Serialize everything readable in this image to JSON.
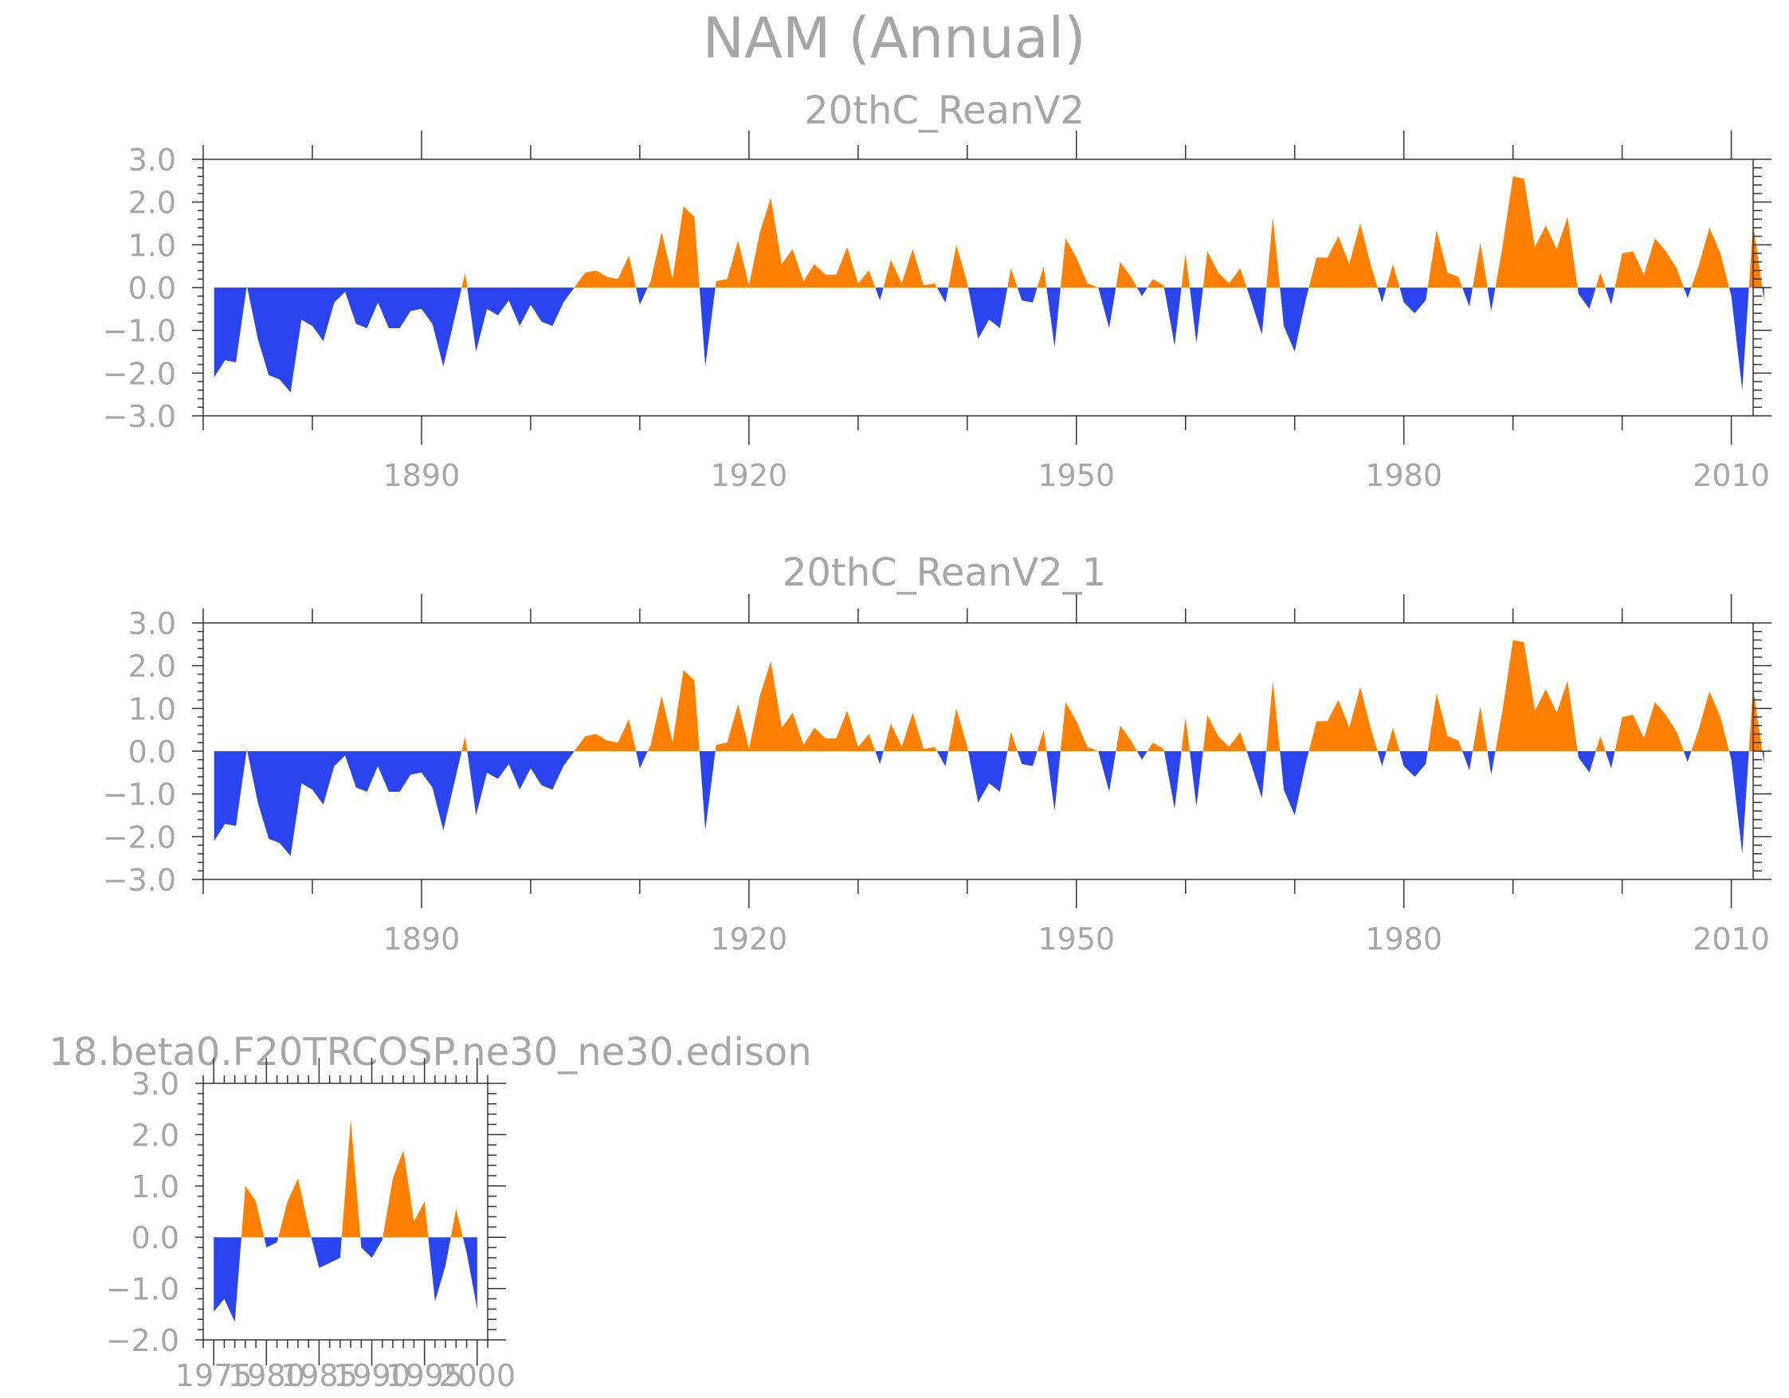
{
  "main_title": "NAM (Annual)",
  "colors": {
    "positive": "#ff8000",
    "negative": "#2a45f0",
    "text": "#a6a6a6",
    "axis": "#333333"
  },
  "chart_data": [
    {
      "type": "area",
      "title": "20thC_ReanV2",
      "xlabel": "",
      "ylabel": "",
      "xlim": [
        1870,
        2012
      ],
      "ylim": [
        -3.0,
        3.0
      ],
      "x_ticks": [
        1890,
        1920,
        1950,
        1980,
        2010
      ],
      "y_ticks": [
        "3.0",
        "2.0",
        "1.0",
        "0.0",
        "−1.0",
        "−2.0",
        "−3.0"
      ],
      "x_start": 1871,
      "values": [
        -2.1,
        -1.7,
        -1.75,
        0.05,
        -1.2,
        -2.05,
        -2.15,
        -2.45,
        -0.75,
        -0.9,
        -1.25,
        -0.35,
        -0.1,
        -0.85,
        -0.95,
        -0.35,
        -0.95,
        -0.95,
        -0.55,
        -0.5,
        -0.85,
        -1.85,
        -0.75,
        0.35,
        -1.5,
        -0.5,
        -0.65,
        -0.3,
        -0.9,
        -0.4,
        -0.8,
        -0.9,
        -0.35,
        0.0,
        0.35,
        0.4,
        0.25,
        0.2,
        0.75,
        -0.4,
        0.15,
        1.3,
        0.2,
        1.9,
        1.65,
        -1.85,
        0.15,
        0.2,
        1.1,
        0.05,
        1.3,
        2.1,
        0.55,
        0.9,
        0.15,
        0.55,
        0.3,
        0.3,
        0.95,
        0.1,
        0.4,
        -0.3,
        0.65,
        0.1,
        0.9,
        0.05,
        0.1,
        -0.35,
        1.0,
        0.1,
        -1.2,
        -0.75,
        -0.95,
        0.45,
        -0.3,
        -0.35,
        0.5,
        -1.4,
        1.15,
        0.7,
        0.1,
        0.0,
        -0.95,
        0.6,
        0.25,
        -0.2,
        0.2,
        0.05,
        -1.35,
        0.8,
        -1.3,
        0.85,
        0.35,
        0.1,
        0.45,
        -0.3,
        -1.1,
        1.65,
        -0.9,
        -1.5,
        -0.3,
        0.7,
        0.7,
        1.2,
        0.55,
        1.5,
        0.5,
        -0.35,
        0.55,
        -0.35,
        -0.6,
        -0.3,
        1.35,
        0.35,
        0.25,
        -0.45,
        1.05,
        -0.55,
        0.9,
        2.6,
        2.55,
        0.95,
        1.45,
        0.9,
        1.65,
        -0.15,
        -0.5,
        0.35,
        -0.4,
        0.8,
        0.85,
        0.3,
        1.15,
        0.85,
        0.45,
        -0.25,
        0.5,
        1.4,
        0.8,
        -0.2,
        -2.4,
        1.5,
        -0.3
      ]
    },
    {
      "type": "area",
      "title": "20thC_ReanV2_1",
      "xlabel": "",
      "ylabel": "",
      "xlim": [
        1870,
        2012
      ],
      "ylim": [
        -3.0,
        3.0
      ],
      "x_ticks": [
        1890,
        1920,
        1950,
        1980,
        2010
      ],
      "y_ticks": [
        "3.0",
        "2.0",
        "1.0",
        "0.0",
        "−1.0",
        "−2.0",
        "−3.0"
      ],
      "x_start": 1871,
      "values": [
        -2.1,
        -1.7,
        -1.75,
        0.05,
        -1.2,
        -2.05,
        -2.15,
        -2.45,
        -0.75,
        -0.9,
        -1.25,
        -0.35,
        -0.1,
        -0.85,
        -0.95,
        -0.35,
        -0.95,
        -0.95,
        -0.55,
        -0.5,
        -0.85,
        -1.85,
        -0.75,
        0.35,
        -1.5,
        -0.5,
        -0.65,
        -0.3,
        -0.9,
        -0.4,
        -0.8,
        -0.9,
        -0.35,
        0.0,
        0.35,
        0.4,
        0.25,
        0.2,
        0.75,
        -0.4,
        0.15,
        1.3,
        0.2,
        1.9,
        1.65,
        -1.85,
        0.15,
        0.2,
        1.1,
        0.05,
        1.3,
        2.1,
        0.55,
        0.9,
        0.15,
        0.55,
        0.3,
        0.3,
        0.95,
        0.1,
        0.4,
        -0.3,
        0.65,
        0.1,
        0.9,
        0.05,
        0.1,
        -0.35,
        1.0,
        0.1,
        -1.2,
        -0.75,
        -0.95,
        0.45,
        -0.3,
        -0.35,
        0.5,
        -1.4,
        1.15,
        0.7,
        0.1,
        0.0,
        -0.95,
        0.6,
        0.25,
        -0.2,
        0.2,
        0.05,
        -1.35,
        0.8,
        -1.3,
        0.85,
        0.35,
        0.1,
        0.45,
        -0.3,
        -1.1,
        1.65,
        -0.9,
        -1.5,
        -0.3,
        0.7,
        0.7,
        1.2,
        0.55,
        1.5,
        0.5,
        -0.35,
        0.55,
        -0.35,
        -0.6,
        -0.3,
        1.35,
        0.35,
        0.25,
        -0.45,
        1.05,
        -0.55,
        0.9,
        2.6,
        2.55,
        0.95,
        1.45,
        0.9,
        1.65,
        -0.15,
        -0.5,
        0.35,
        -0.4,
        0.8,
        0.85,
        0.3,
        1.15,
        0.85,
        0.45,
        -0.25,
        0.5,
        1.4,
        0.8,
        -0.2,
        -2.4,
        1.5,
        -0.3
      ]
    },
    {
      "type": "area",
      "title": "18.beta0.F20TRCOSP.ne30_ne30.edison",
      "xlabel": "",
      "ylabel": "",
      "xlim": [
        1974,
        2001
      ],
      "ylim": [
        -2.0,
        3.0
      ],
      "x_ticks": [
        1975,
        1980,
        1985,
        1990,
        1995,
        2000
      ],
      "y_ticks": [
        "3.0",
        "2.0",
        "1.0",
        "0.0",
        "−1.0",
        "−2.0"
      ],
      "x_start": 1975,
      "values": [
        -1.45,
        -1.2,
        -1.65,
        1.0,
        0.7,
        -0.2,
        -0.1,
        0.7,
        1.15,
        0.2,
        -0.6,
        -0.5,
        -0.4,
        2.3,
        -0.2,
        -0.4,
        -0.05,
        1.15,
        1.7,
        0.3,
        0.7,
        -1.25,
        -0.55,
        0.55,
        -0.3,
        -1.4
      ]
    }
  ]
}
